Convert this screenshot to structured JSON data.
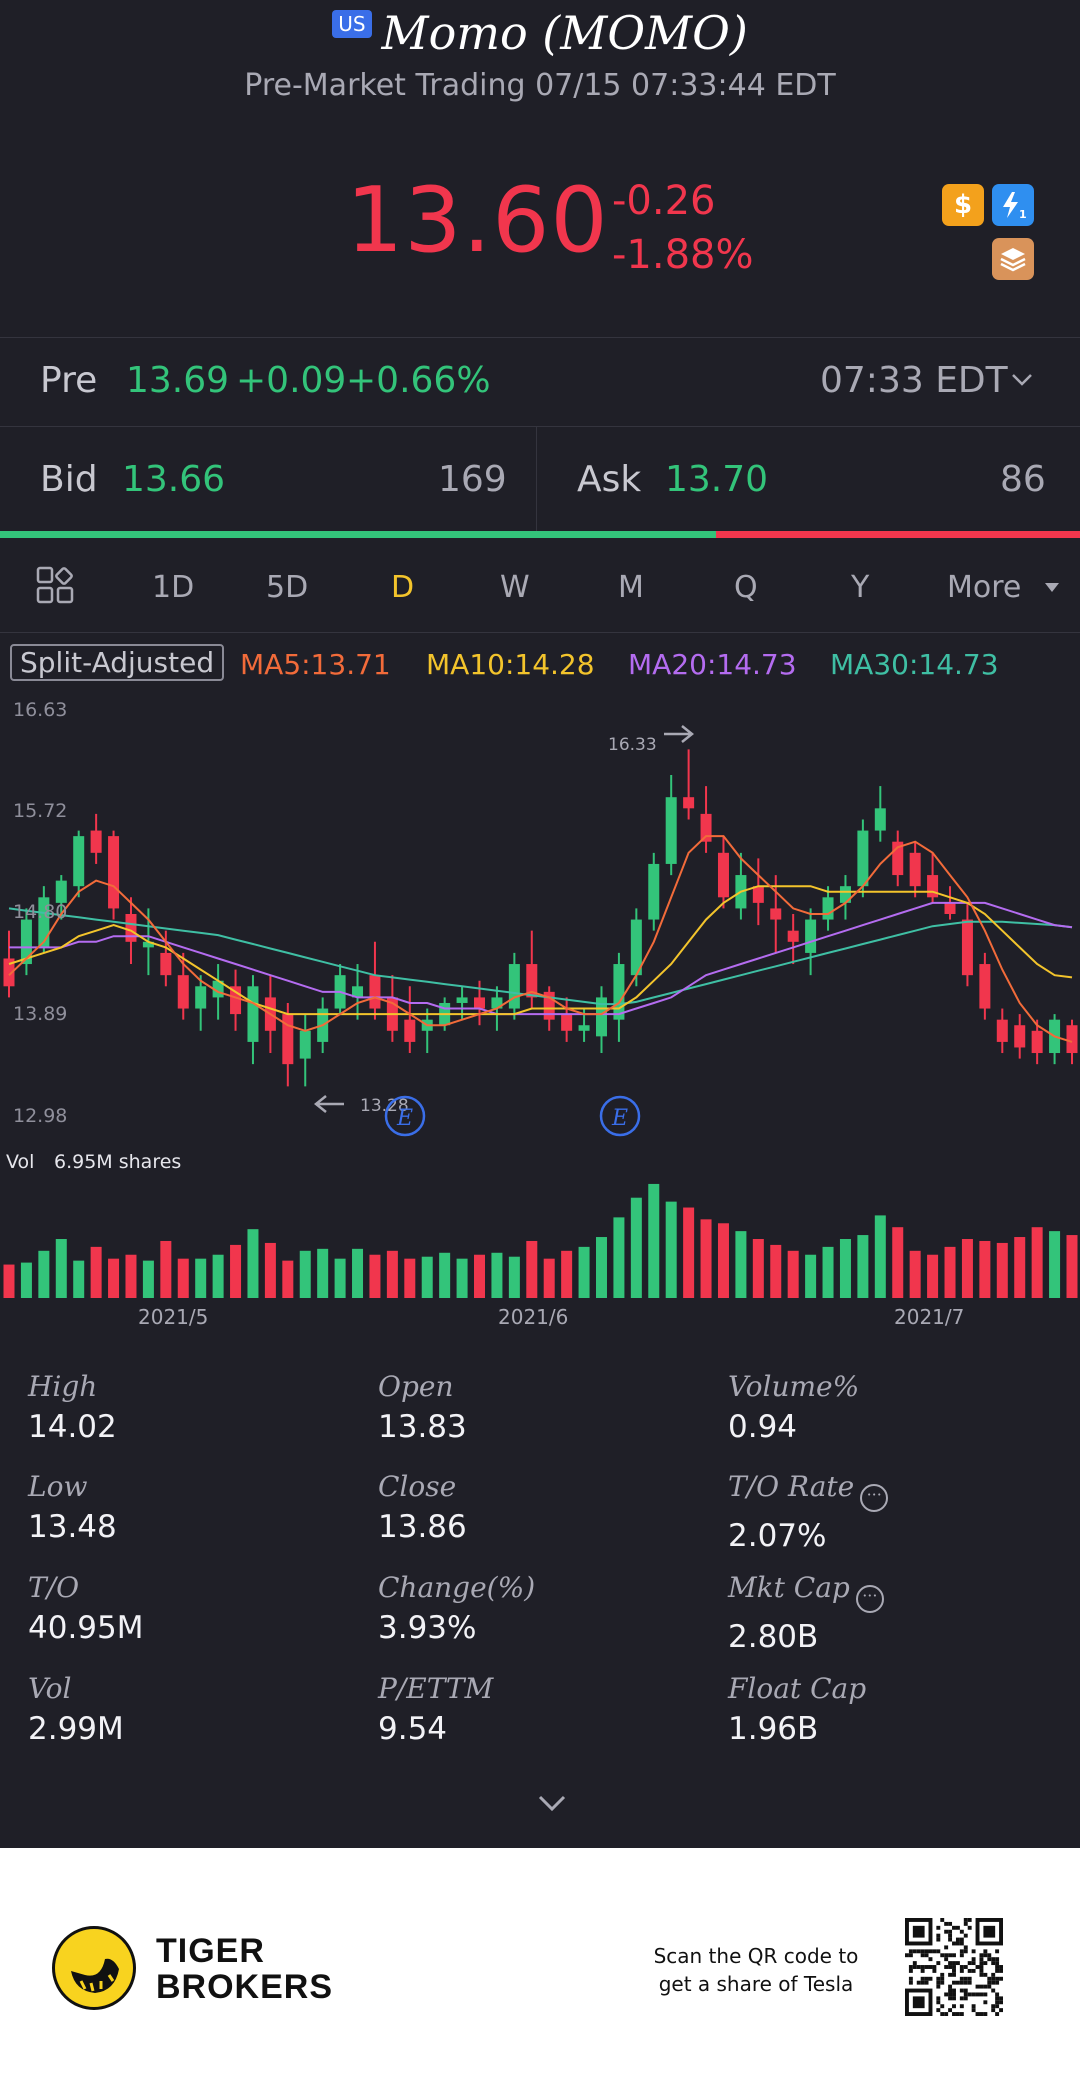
{
  "header": {
    "market_badge": "US",
    "title": "Momo (MOMO)",
    "subtitle": "Pre-Market Trading 07/15 07:33:44 EDT",
    "price": "13.60",
    "change": "-0.26",
    "change_pct": "-1.88%",
    "icons": [
      "dollar-icon",
      "flash-level-icon",
      "stack-icon"
    ]
  },
  "premarket": {
    "label": "Pre",
    "price": "13.69",
    "change": "+0.09",
    "change_pct": "+0.66%",
    "time": "07:33 EDT"
  },
  "quote": {
    "bid_label": "Bid",
    "bid": "13.66",
    "bid_size": "169",
    "ask_label": "Ask",
    "ask": "13.70",
    "ask_size": "86",
    "bid_ratio": 0.663
  },
  "periods": {
    "tabs": [
      "1D",
      "5D",
      "D",
      "W",
      "M",
      "Q",
      "Y",
      "More"
    ],
    "active": "D"
  },
  "indicators": {
    "split_label": "Split-Adjusted",
    "ma5": "MA5:13.71",
    "ma10": "MA10:14.28",
    "ma20": "MA20:14.73",
    "ma30": "MA30:14.73"
  },
  "colors": {
    "up": "#33c47a",
    "down": "#f1364d",
    "ma5": "#f26b3a",
    "ma10": "#f3c42c",
    "ma20": "#b46cf0",
    "ma30": "#3fbfa4"
  },
  "chart_data": {
    "type": "candlestick",
    "y_ticks": [
      "16.63",
      "15.72",
      "14.80",
      "13.89",
      "12.98"
    ],
    "ylim": [
      12.98,
      16.63
    ],
    "x_ticks": [
      "2021/5",
      "2021/6",
      "2021/7"
    ],
    "max_label": "16.33",
    "min_label": "13.28",
    "earnings_marker": "E",
    "volume_label": "Vol",
    "volume_value": "6.95M shares",
    "candles": [
      [
        14.45,
        14.7,
        14.1,
        14.2
      ],
      [
        14.4,
        14.9,
        14.3,
        14.8
      ],
      [
        14.55,
        15.1,
        14.5,
        15.0
      ],
      [
        14.95,
        15.2,
        14.8,
        15.15
      ],
      [
        15.1,
        15.6,
        15.0,
        15.55
      ],
      [
        15.6,
        15.75,
        15.3,
        15.4
      ],
      [
        15.55,
        15.6,
        14.8,
        14.9
      ],
      [
        14.85,
        15.0,
        14.4,
        14.6
      ],
      [
        14.55,
        14.9,
        14.3,
        14.6
      ],
      [
        14.5,
        14.7,
        14.2,
        14.3
      ],
      [
        14.3,
        14.5,
        13.9,
        14.0
      ],
      [
        14.0,
        14.3,
        13.8,
        14.2
      ],
      [
        14.1,
        14.4,
        13.9,
        14.25
      ],
      [
        14.2,
        14.35,
        13.8,
        13.95
      ],
      [
        13.7,
        14.3,
        13.5,
        14.2
      ],
      [
        14.1,
        14.3,
        13.6,
        13.8
      ],
      [
        13.95,
        14.05,
        13.3,
        13.5
      ],
      [
        13.55,
        13.95,
        13.3,
        13.8
      ],
      [
        13.7,
        14.1,
        13.6,
        14.0
      ],
      [
        14.0,
        14.4,
        13.95,
        14.3
      ],
      [
        14.1,
        14.4,
        13.9,
        14.2
      ],
      [
        14.3,
        14.6,
        13.9,
        14.0
      ],
      [
        14.1,
        14.3,
        13.7,
        13.8
      ],
      [
        13.9,
        14.2,
        13.6,
        13.7
      ],
      [
        13.8,
        14.0,
        13.6,
        13.9
      ],
      [
        13.85,
        14.1,
        13.8,
        14.05
      ],
      [
        14.05,
        14.2,
        13.9,
        14.1
      ],
      [
        14.1,
        14.25,
        13.85,
        14.0
      ],
      [
        14.0,
        14.2,
        13.8,
        14.1
      ],
      [
        14.0,
        14.5,
        13.9,
        14.4
      ],
      [
        14.4,
        14.7,
        14.0,
        14.1
      ],
      [
        14.15,
        14.2,
        13.8,
        13.9
      ],
      [
        13.95,
        14.1,
        13.7,
        13.8
      ],
      [
        13.8,
        14.0,
        13.7,
        13.85
      ],
      [
        13.75,
        14.2,
        13.6,
        14.1
      ],
      [
        13.9,
        14.5,
        13.7,
        14.4
      ],
      [
        14.3,
        14.9,
        14.2,
        14.8
      ],
      [
        14.8,
        15.4,
        14.7,
        15.3
      ],
      [
        15.3,
        16.1,
        15.2,
        15.9
      ],
      [
        15.9,
        16.33,
        15.7,
        15.8
      ],
      [
        15.75,
        16.0,
        15.4,
        15.5
      ],
      [
        15.4,
        15.55,
        14.9,
        15.0
      ],
      [
        14.9,
        15.4,
        14.8,
        15.2
      ],
      [
        15.1,
        15.35,
        14.75,
        14.95
      ],
      [
        14.9,
        15.2,
        14.5,
        14.8
      ],
      [
        14.7,
        14.85,
        14.4,
        14.6
      ],
      [
        14.5,
        14.9,
        14.3,
        14.8
      ],
      [
        14.8,
        15.1,
        14.7,
        15.0
      ],
      [
        14.95,
        15.2,
        14.8,
        15.1
      ],
      [
        15.1,
        15.7,
        15.0,
        15.6
      ],
      [
        15.6,
        16.0,
        15.5,
        15.8
      ],
      [
        15.5,
        15.6,
        15.1,
        15.2
      ],
      [
        15.4,
        15.5,
        15.0,
        15.1
      ],
      [
        15.2,
        15.4,
        14.95,
        15.0
      ],
      [
        14.95,
        15.1,
        14.8,
        14.85
      ],
      [
        14.8,
        14.95,
        14.2,
        14.3
      ],
      [
        14.4,
        14.5,
        13.9,
        14.0
      ],
      [
        13.9,
        14.0,
        13.6,
        13.7
      ],
      [
        13.85,
        13.95,
        13.55,
        13.65
      ],
      [
        13.8,
        13.9,
        13.5,
        13.6
      ],
      [
        13.6,
        13.95,
        13.5,
        13.9
      ],
      [
        13.85,
        13.9,
        13.5,
        13.6
      ]
    ],
    "ma_series": {
      "ma5": [
        14.3,
        14.45,
        14.6,
        14.85,
        15.05,
        15.15,
        15.1,
        14.95,
        14.8,
        14.6,
        14.4,
        14.25,
        14.15,
        14.1,
        14.05,
        13.95,
        13.85,
        13.8,
        13.85,
        13.95,
        14.05,
        14.1,
        14.05,
        13.95,
        13.85,
        13.85,
        13.9,
        13.95,
        14.0,
        14.1,
        14.15,
        14.1,
        14.0,
        13.95,
        13.95,
        14.05,
        14.3,
        14.6,
        15.0,
        15.4,
        15.55,
        15.55,
        15.35,
        15.2,
        15.05,
        14.9,
        14.85,
        14.85,
        14.95,
        15.1,
        15.3,
        15.45,
        15.5,
        15.4,
        15.2,
        15.0,
        14.7,
        14.35,
        14.05,
        13.85,
        13.75,
        13.7
      ],
      "ma10": [
        14.4,
        14.45,
        14.5,
        14.55,
        14.65,
        14.7,
        14.75,
        14.7,
        14.6,
        14.55,
        14.45,
        14.35,
        14.25,
        14.15,
        14.05,
        14.0,
        13.95,
        13.95,
        13.95,
        13.95,
        13.95,
        13.95,
        13.95,
        13.95,
        13.95,
        13.95,
        13.95,
        13.95,
        13.95,
        13.95,
        14.0,
        14.0,
        14.0,
        14.0,
        14.0,
        14.0,
        14.1,
        14.25,
        14.4,
        14.6,
        14.8,
        14.95,
        15.05,
        15.1,
        15.1,
        15.1,
        15.1,
        15.05,
        15.05,
        15.05,
        15.05,
        15.05,
        15.05,
        15.05,
        15.0,
        14.95,
        14.85,
        14.7,
        14.55,
        14.4,
        14.3,
        14.28
      ],
      "ma20": [
        14.55,
        14.55,
        14.55,
        14.55,
        14.6,
        14.6,
        14.65,
        14.65,
        14.65,
        14.6,
        14.55,
        14.5,
        14.45,
        14.4,
        14.35,
        14.3,
        14.25,
        14.2,
        14.15,
        14.15,
        14.1,
        14.1,
        14.1,
        14.05,
        14.05,
        14.0,
        14.0,
        14.0,
        13.95,
        13.95,
        13.95,
        13.95,
        13.95,
        13.95,
        13.95,
        13.95,
        14.0,
        14.05,
        14.1,
        14.2,
        14.3,
        14.35,
        14.4,
        14.45,
        14.5,
        14.55,
        14.6,
        14.65,
        14.7,
        14.75,
        14.8,
        14.85,
        14.9,
        14.95,
        14.95,
        14.95,
        14.95,
        14.9,
        14.85,
        14.8,
        14.75,
        14.73
      ],
      "ma30": [
        14.9,
        14.88,
        14.86,
        14.84,
        14.82,
        14.8,
        14.78,
        14.76,
        14.74,
        14.72,
        14.7,
        14.68,
        14.66,
        14.62,
        14.58,
        14.54,
        14.5,
        14.46,
        14.42,
        14.38,
        14.34,
        14.3,
        14.28,
        14.26,
        14.24,
        14.22,
        14.2,
        14.18,
        14.16,
        14.14,
        14.12,
        14.1,
        14.08,
        14.06,
        14.04,
        14.04,
        14.06,
        14.1,
        14.14,
        14.18,
        14.22,
        14.26,
        14.3,
        14.34,
        14.38,
        14.42,
        14.46,
        14.5,
        14.54,
        14.58,
        14.62,
        14.66,
        14.7,
        14.74,
        14.76,
        14.78,
        14.78,
        14.78,
        14.77,
        14.76,
        14.75,
        14.73
      ]
    },
    "volume": [
      1.7,
      1.8,
      2.4,
      3.0,
      1.9,
      2.6,
      2.0,
      2.2,
      1.9,
      2.9,
      2.0,
      2.0,
      2.2,
      2.7,
      3.5,
      2.8,
      1.9,
      2.4,
      2.5,
      2.0,
      2.5,
      2.2,
      2.4,
      2.0,
      2.1,
      2.3,
      2.0,
      2.2,
      2.3,
      2.1,
      2.9,
      2.0,
      2.4,
      2.6,
      3.1,
      4.1,
      5.1,
      5.8,
      4.9,
      4.6,
      4.0,
      3.8,
      3.4,
      3.0,
      2.7,
      2.4,
      2.2,
      2.6,
      3.0,
      3.2,
      4.2,
      3.6,
      2.4,
      2.2,
      2.6,
      3.0,
      2.9,
      2.8,
      3.1,
      3.6,
      3.4,
      3.2
    ]
  },
  "stats": [
    {
      "label": "High",
      "value": "14.02"
    },
    {
      "label": "Open",
      "value": "13.83"
    },
    {
      "label": "Volume%",
      "value": "0.94"
    },
    {
      "label": "Low",
      "value": "13.48"
    },
    {
      "label": "Close",
      "value": "13.86"
    },
    {
      "label": "T/O Rate",
      "value": "2.07%",
      "info": true
    },
    {
      "label": "T/O",
      "value": "40.95M"
    },
    {
      "label": "Change(%)",
      "value": "3.93%"
    },
    {
      "label": "Mkt Cap",
      "value": "2.80B",
      "info": true
    },
    {
      "label": "Vol",
      "value": "2.99M"
    },
    {
      "label": "P/ETTM",
      "value": "9.54"
    },
    {
      "label": "Float Cap",
      "value": "1.96B"
    }
  ],
  "footer": {
    "brand_line1": "TIGER",
    "brand_line2": "BROKERS",
    "qr_text_line1": "Scan the QR code to",
    "qr_text_line2": "get a share of Tesla"
  }
}
